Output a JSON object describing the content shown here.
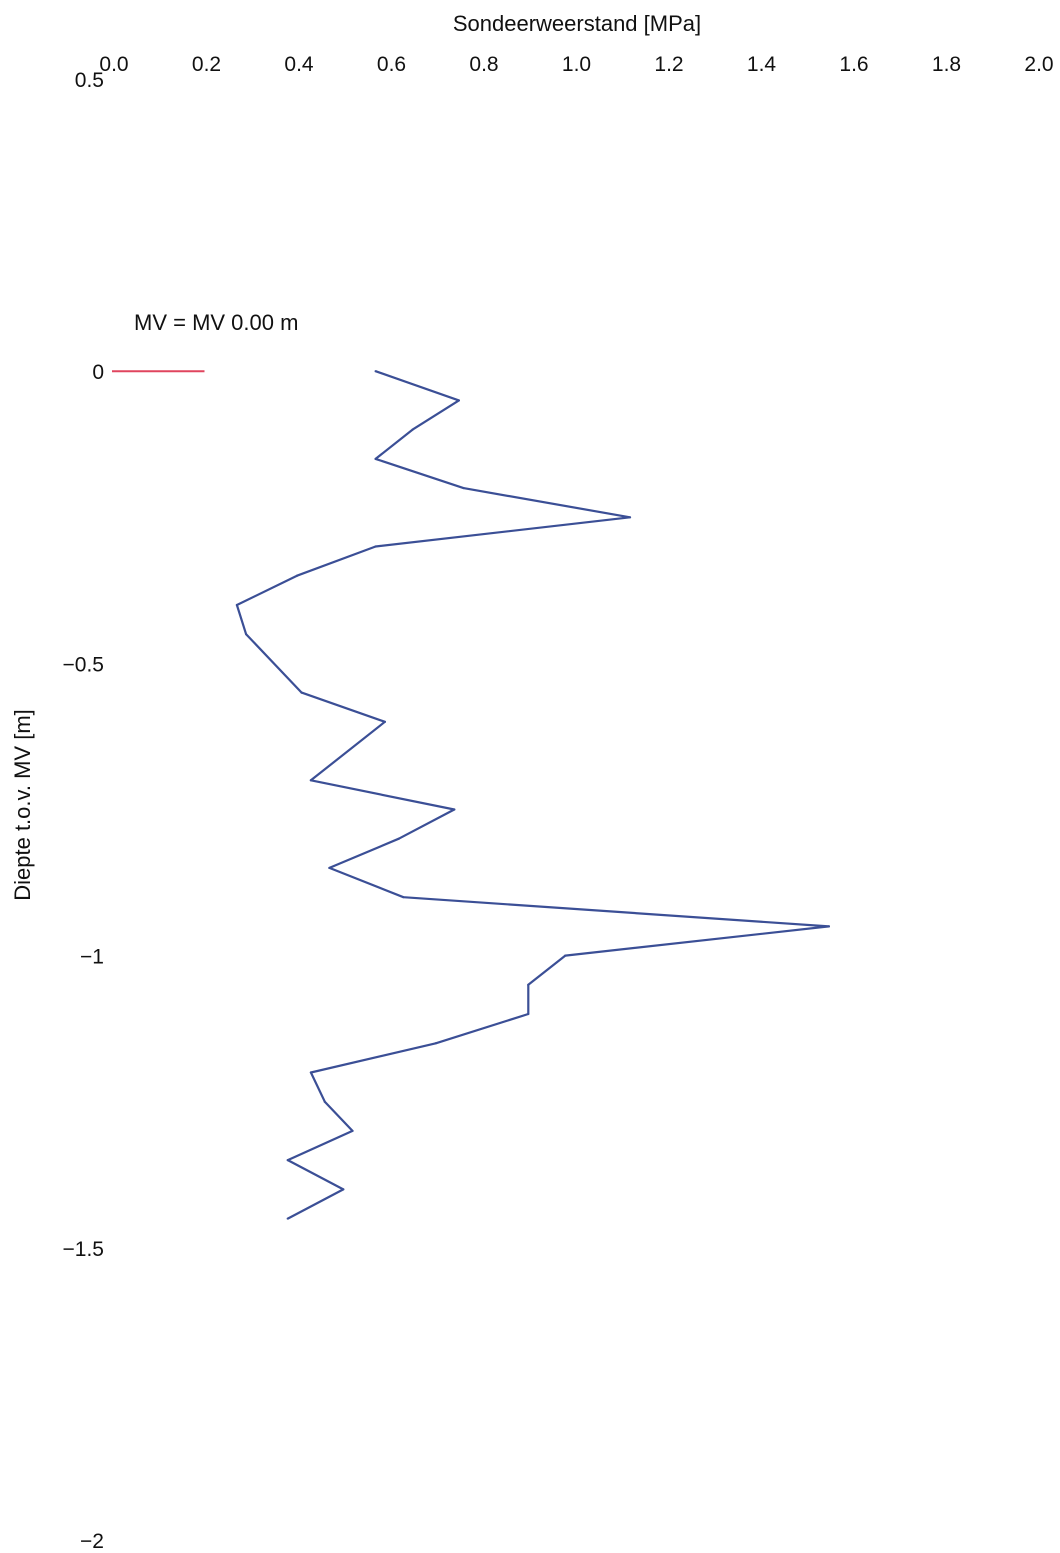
{
  "chart_data": {
    "type": "line",
    "title": "",
    "xlabel": "Sondeerweerstand [MPa]",
    "ylabel": "Diepte t.o.v. MV [m]",
    "xlim": [
      0.0,
      2.0
    ],
    "ylim": [
      -2,
      0.5
    ],
    "x_axis_position": "top",
    "grid": false,
    "x_ticks": [
      "0.0",
      "0.2",
      "0.4",
      "0.6",
      "0.8",
      "1.0",
      "1.2",
      "1.4",
      "1.6",
      "1.8",
      "2.0"
    ],
    "y_ticks": [
      "0.5",
      "0",
      "−0.5",
      "−1",
      "−1.5",
      "−2"
    ],
    "annotation": {
      "text": "MV = MV 0.00 m",
      "marker_depth": 0,
      "marker_x_range": [
        0.0,
        0.2
      ],
      "marker_color": "#e0455e"
    },
    "series": [
      {
        "color": "#3b4f96",
        "x": [
          0.57,
          0.75,
          0.65,
          0.57,
          0.76,
          1.12,
          0.57,
          0.4,
          0.27,
          0.29,
          0.41,
          0.59,
          0.43,
          0.74,
          0.62,
          0.47,
          0.63,
          1.55,
          0.98,
          0.9,
          0.9,
          0.7,
          0.43,
          0.46,
          0.52,
          0.38,
          0.5,
          0.38
        ],
        "y": [
          0.0,
          -0.05,
          -0.1,
          -0.15,
          -0.2,
          -0.25,
          -0.3,
          -0.35,
          -0.4,
          -0.45,
          -0.55,
          -0.6,
          -0.7,
          -0.75,
          -0.8,
          -0.85,
          -0.9,
          -0.95,
          -1.0,
          -1.05,
          -1.1,
          -1.15,
          -1.2,
          -1.25,
          -1.3,
          -1.35,
          -1.4,
          -1.45
        ]
      }
    ]
  }
}
